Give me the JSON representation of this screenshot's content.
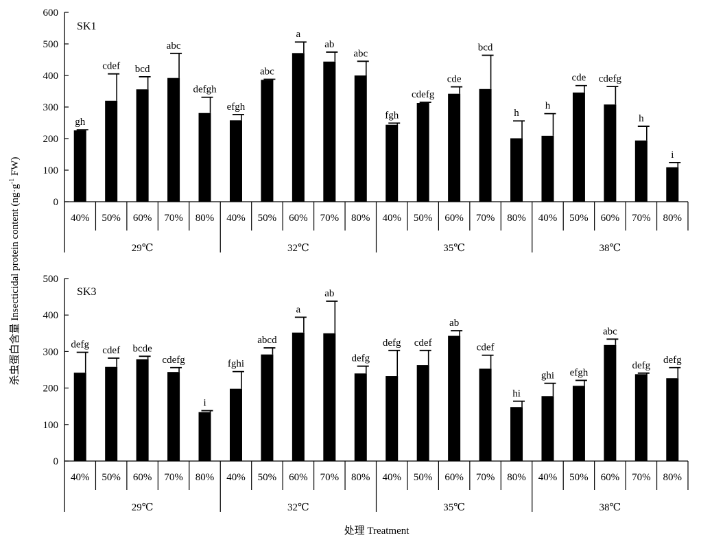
{
  "chart_data": {
    "type": "bar",
    "ylabel": "杀虫蛋白含量 Insecticidal protein content (ng·g",
    "ylabel_sup": "-1",
    "ylabel_tail": " FW)",
    "xlabel": "处理 Treatment",
    "groups": [
      "29℃",
      "32℃",
      "35℃",
      "38℃"
    ],
    "categories": [
      "40%",
      "50%",
      "60%",
      "70%",
      "80%"
    ],
    "panels": [
      {
        "name": "SK1",
        "ylim": [
          0,
          600
        ],
        "yticks": [
          0,
          100,
          200,
          300,
          400,
          500,
          600
        ],
        "values": [
          226,
          320,
          356,
          392,
          281,
          258,
          386,
          471,
          444,
          400,
          244,
          313,
          342,
          357,
          201,
          209,
          346,
          308,
          194,
          109
        ],
        "errors": [
          2,
          85,
          40,
          78,
          50,
          18,
          2,
          35,
          30,
          45,
          5,
          2,
          22,
          107,
          55,
          70,
          22,
          57,
          45,
          15
        ],
        "letters": [
          "gh",
          "cdef",
          "bcd",
          "abc",
          "defgh",
          "efgh",
          "abc",
          "a",
          "ab",
          "abc",
          "fgh",
          "cdefg",
          "cde",
          "bcd",
          "h",
          "h",
          "cde",
          "cdefg",
          "h",
          "i"
        ]
      },
      {
        "name": "SK3",
        "ylim": [
          0,
          500
        ],
        "yticks": [
          0,
          100,
          200,
          300,
          400,
          500
        ],
        "values": [
          242,
          258,
          279,
          244,
          134,
          198,
          292,
          352,
          350,
          240,
          233,
          263,
          343,
          253,
          148,
          178,
          206,
          318,
          238,
          227
        ],
        "errors": [
          56,
          24,
          8,
          12,
          4,
          47,
          18,
          42,
          88,
          20,
          70,
          40,
          14,
          37,
          16,
          35,
          15,
          16,
          3,
          29
        ],
        "letters": [
          "defg",
          "cdef",
          "bcde",
          "cdefg",
          "i",
          "fghi",
          "abcd",
          "a",
          "ab",
          "defg",
          "defg",
          "cdef",
          "ab",
          "cdef",
          "hi",
          "ghi",
          "efgh",
          "abc",
          "defg",
          "defg"
        ]
      }
    ],
    "legend": "none",
    "grid": false
  }
}
